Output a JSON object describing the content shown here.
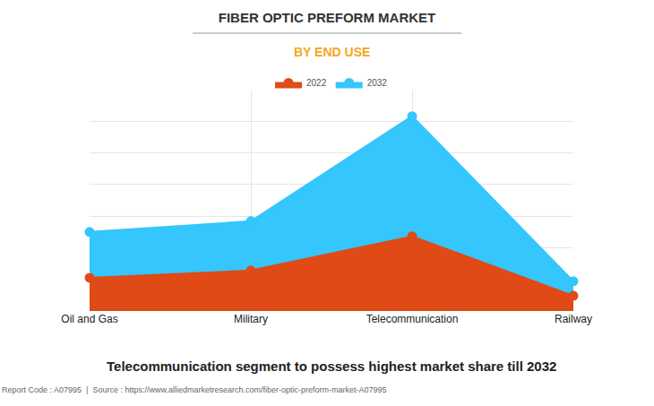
{
  "chart_data": {
    "type": "area",
    "title": "FIBER OPTIC PREFORM MARKET",
    "subtitle": "BY END USE",
    "annotations": [
      "Telecommunication segment to possess highest market share till 2032",
      "Report Code : A07995  |  Source : https://www.alliedmarketresearch.com/fiber-optic-preform-market-A07995"
    ],
    "categories": [
      "Oil and Gas",
      "Military",
      "Telecommunication",
      "Railway"
    ],
    "series": [
      {
        "name": "2022",
        "color": "#e04a17",
        "values": [
          1.05,
          1.28,
          2.36,
          0.48
        ]
      },
      {
        "name": "2032",
        "color": "#34c6fd",
        "values": [
          2.5,
          2.84,
          6.16,
          0.94
        ]
      }
    ],
    "ylim": [
      0,
      7
    ],
    "yticks": [
      0,
      1,
      2,
      3,
      4,
      5,
      6,
      7
    ],
    "grid": true,
    "legend": "top",
    "tick_labels": "x",
    "marker": "circle"
  }
}
